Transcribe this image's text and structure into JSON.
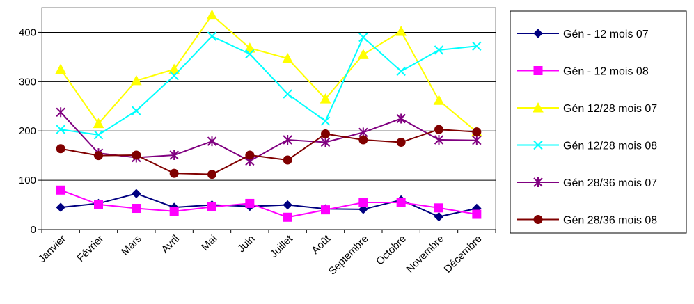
{
  "chart_data": {
    "type": "line",
    "categories": [
      "Janvier",
      "Février",
      "Mars",
      "Avril",
      "Mai",
      "Juin",
      "Juillet",
      "Août",
      "Septembre",
      "Octobre",
      "Novembre",
      "Décembre"
    ],
    "ylim": [
      0,
      450
    ],
    "yticks": [
      0,
      100,
      200,
      300,
      400
    ],
    "grid": true,
    "legend": "right",
    "series": [
      {
        "name": "Gén - 12 mois 07",
        "color": "#000080",
        "marker": "diamond",
        "values": [
          45,
          53,
          73,
          45,
          50,
          47,
          50,
          42,
          41,
          60,
          26,
          43
        ]
      },
      {
        "name": "Gén - 12 mois 08",
        "color": "#FF00FF",
        "marker": "square",
        "values": [
          80,
          51,
          43,
          37,
          46,
          53,
          25,
          40,
          55,
          55,
          44,
          31
        ]
      },
      {
        "name": "Gén 12/28 mois 07",
        "color": "#FFFF00",
        "marker": "triangle",
        "values": [
          325,
          215,
          302,
          325,
          435,
          368,
          347,
          265,
          355,
          402,
          262,
          198
        ]
      },
      {
        "name": "Gén 12/28 mois 08",
        "color": "#00FFFF",
        "marker": "x",
        "values": [
          203,
          192,
          241,
          312,
          392,
          356,
          275,
          220,
          390,
          321,
          364,
          372
        ]
      },
      {
        "name": "Gén 28/36 mois 07",
        "color": "#800080",
        "marker": "asterisk",
        "values": [
          238,
          155,
          146,
          151,
          179,
          139,
          182,
          177,
          197,
          225,
          182,
          181
        ]
      },
      {
        "name": "Gén 28/36 mois 08",
        "color": "#800000",
        "marker": "circle",
        "values": [
          164,
          150,
          151,
          114,
          112,
          151,
          141,
          194,
          182,
          177,
          203,
          198
        ]
      }
    ]
  }
}
